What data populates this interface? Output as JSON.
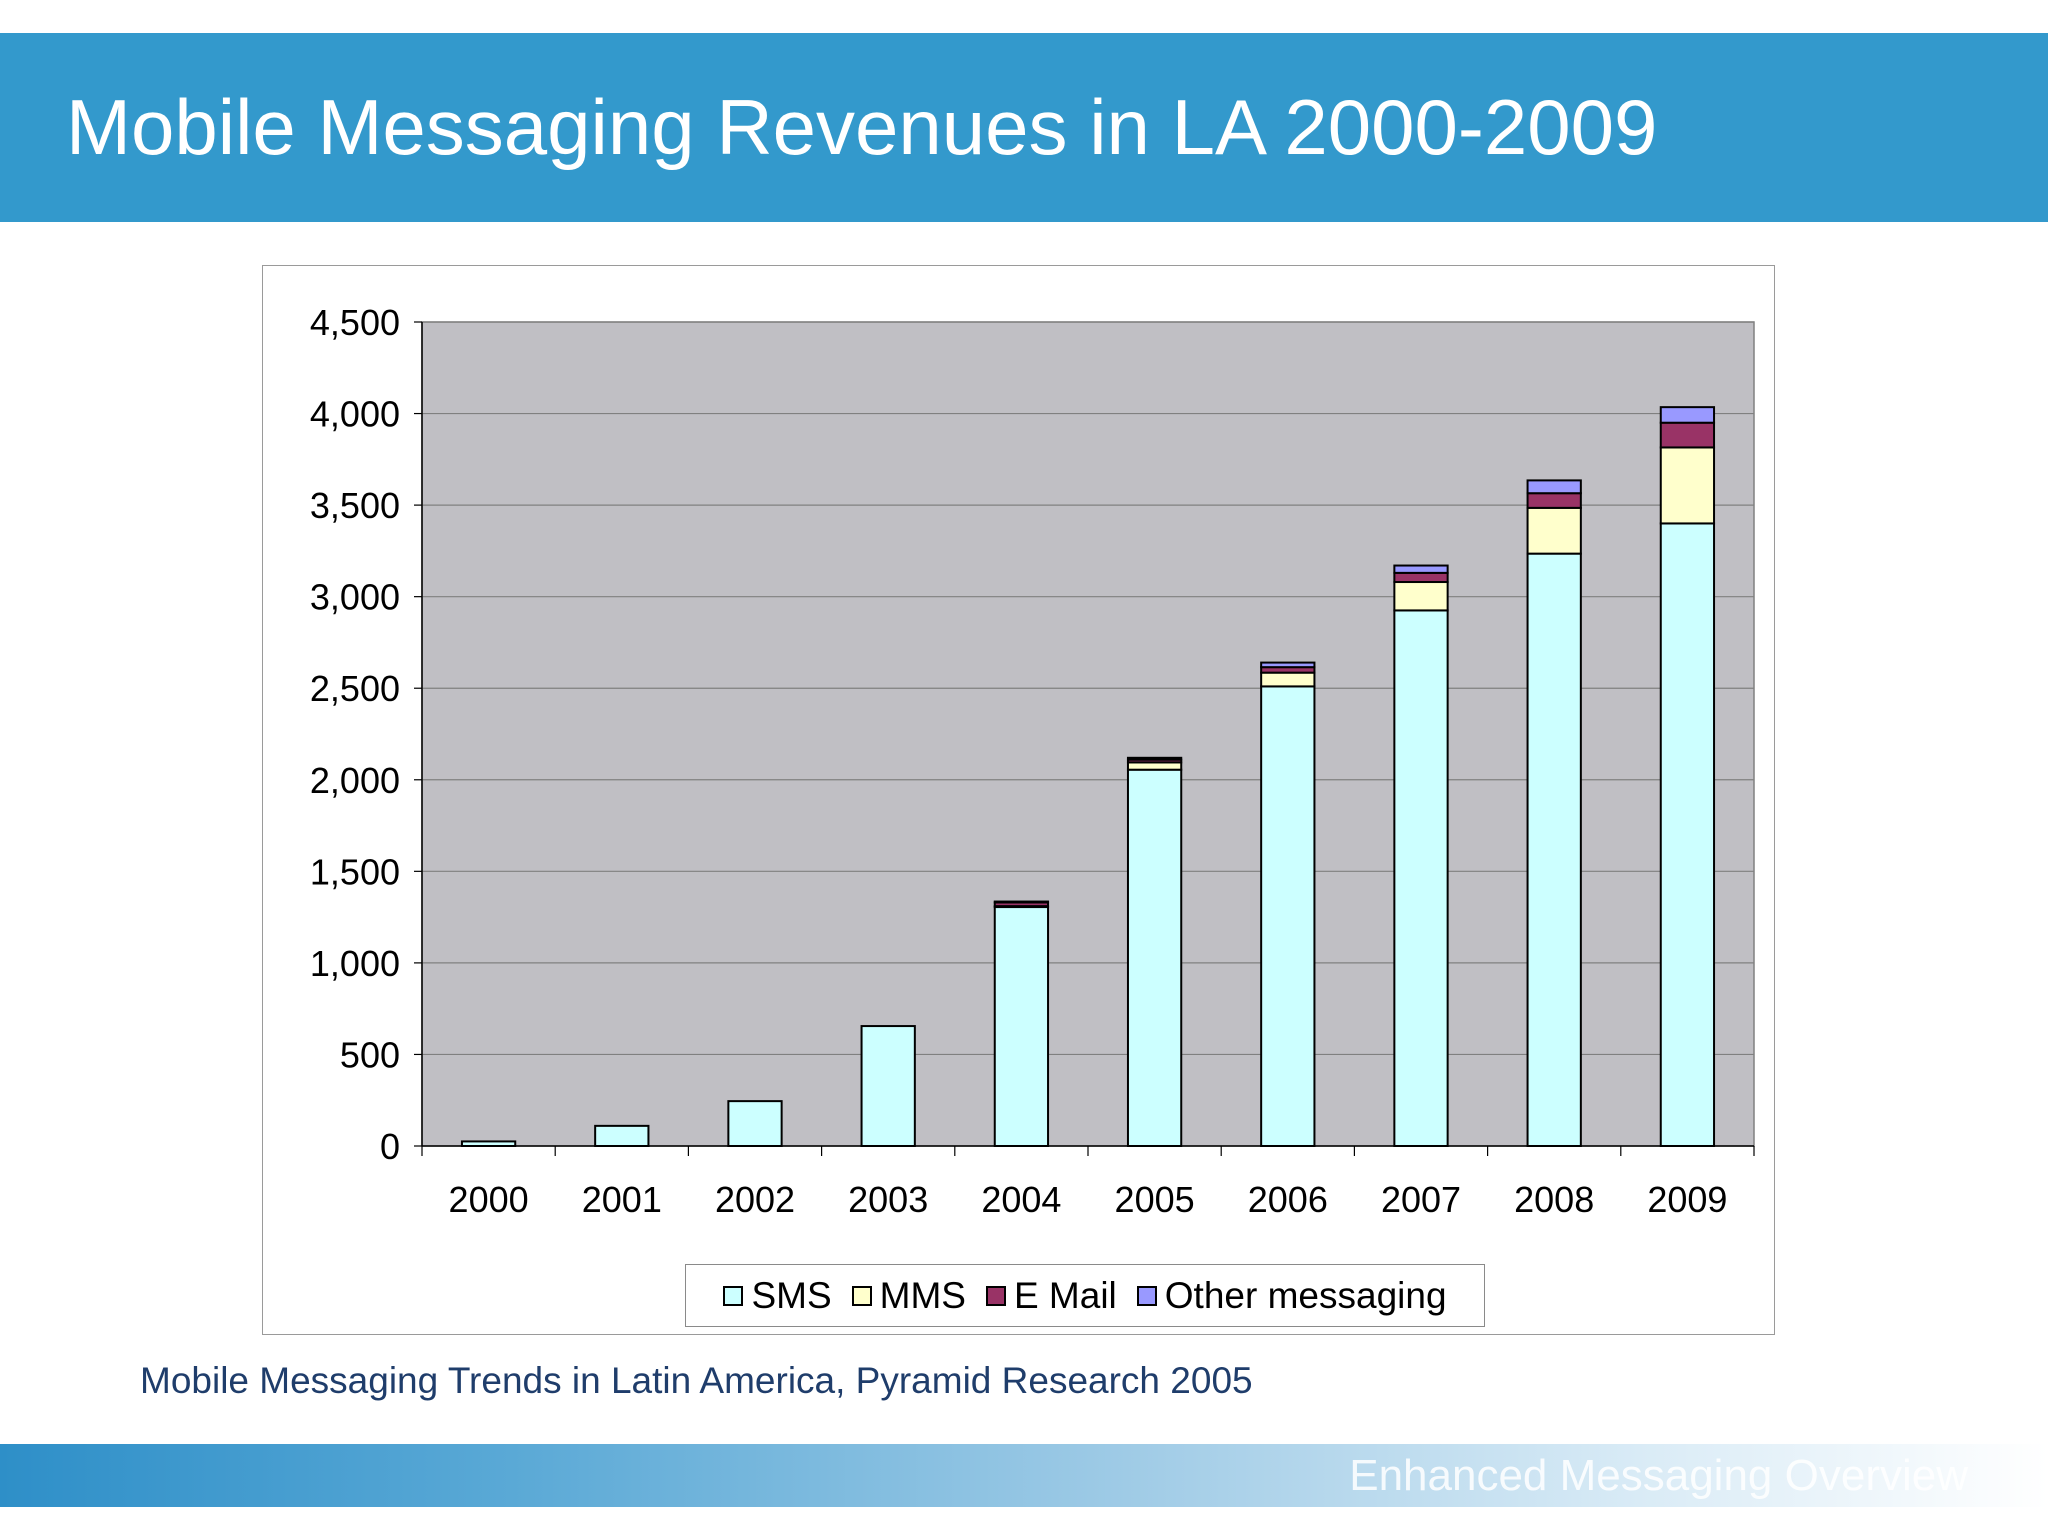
{
  "slide": {
    "title": "Mobile Messaging Revenues in LA 2000-2009",
    "source": "Mobile Messaging Trends in Latin America, Pyramid Research 2005",
    "footer": "Enhanced Messaging Overview"
  },
  "colors": {
    "header": "#3399cc",
    "plot_background": "#c0bfc4",
    "SMS": "#ccffff",
    "MMS": "#ffffcc",
    "E Mail": "#993366",
    "Other messaging": "#9999ff"
  },
  "chart_data": {
    "type": "bar",
    "stacked": true,
    "categories": [
      "2000",
      "2001",
      "2002",
      "2003",
      "2004",
      "2005",
      "2006",
      "2007",
      "2008",
      "2009"
    ],
    "series": [
      {
        "name": "SMS",
        "color": "#ccffff",
        "values": [
          25,
          110,
          245,
          655,
          1305,
          2055,
          2510,
          2925,
          3235,
          3400
        ]
      },
      {
        "name": "MMS",
        "color": "#ffffcc",
        "values": [
          0,
          0,
          0,
          0,
          5,
          40,
          75,
          155,
          250,
          415
        ]
      },
      {
        "name": "E Mail",
        "color": "#993366",
        "values": [
          0,
          0,
          0,
          0,
          20,
          15,
          30,
          50,
          80,
          135
        ]
      },
      {
        "name": "Other messaging",
        "color": "#9999ff",
        "values": [
          0,
          0,
          0,
          0,
          5,
          10,
          25,
          40,
          70,
          85
        ]
      }
    ],
    "y_ticks": [
      "0",
      "500",
      "1,000",
      "1,500",
      "2,000",
      "2,500",
      "3,000",
      "3,500",
      "4,000",
      "4,500"
    ],
    "ylim": [
      0,
      4500
    ],
    "grid": true,
    "legend_position": "bottom"
  }
}
